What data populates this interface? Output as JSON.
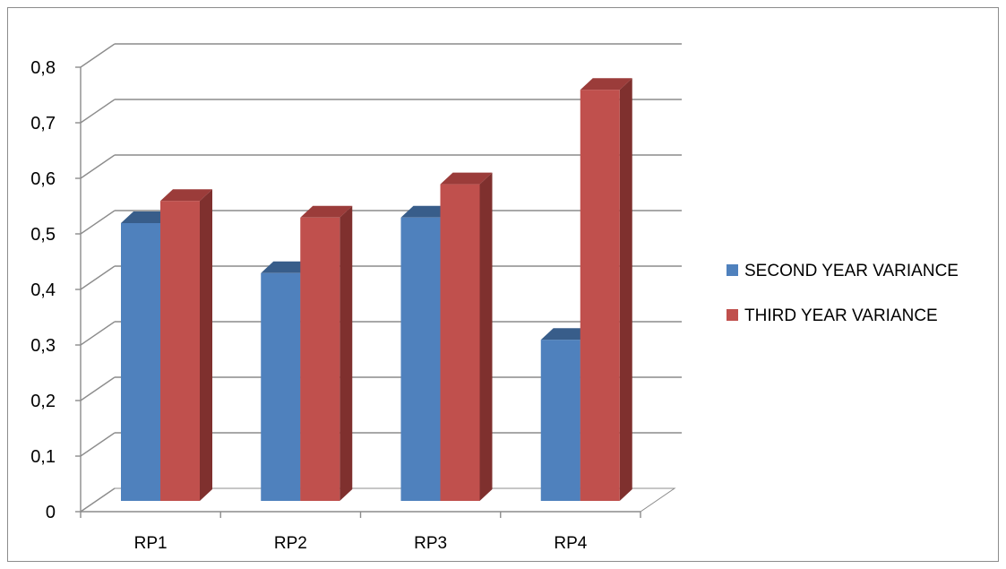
{
  "chart_data": {
    "type": "bar",
    "categories": [
      "RP1",
      "RP2",
      "RP3",
      "RP4"
    ],
    "series": [
      {
        "name": "SECOND YEAR VARIANCE",
        "values": [
          0.5,
          0.41,
          0.51,
          0.29
        ],
        "color": "#4f81bd",
        "top_color": "#385d8a",
        "side_color": "#2e4a70"
      },
      {
        "name": "THIRD YEAR VARIANCE",
        "values": [
          0.54,
          0.51,
          0.57,
          0.74
        ],
        "color": "#c0504d",
        "top_color": "#9b3c3a",
        "side_color": "#7f302e"
      }
    ],
    "y_ticks": [
      "0",
      "0,1",
      "0,2",
      "0,3",
      "0,4",
      "0,5",
      "0,6",
      "0,7",
      "0,8"
    ],
    "ylim": [
      0,
      0.8
    ],
    "grid": true,
    "legend_position": "right",
    "title": "",
    "xlabel": "",
    "ylabel": ""
  }
}
